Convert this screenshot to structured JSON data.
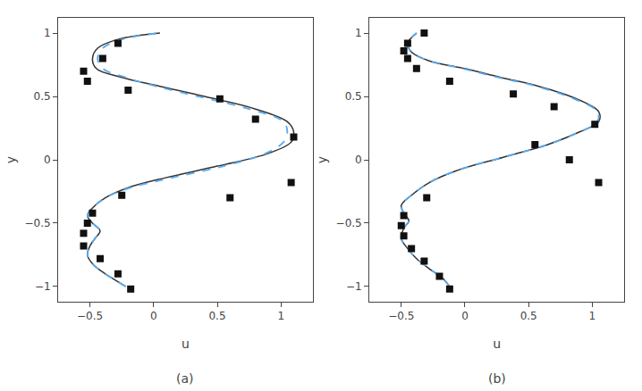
{
  "chart_data": [
    {
      "type": "line",
      "title": "(a)",
      "xlabel": "u",
      "ylabel": "y",
      "xlim": [
        -0.75,
        1.25
      ],
      "ylim": [
        -1.12,
        1.12
      ],
      "xticks": [
        -0.5,
        0,
        0.5,
        1
      ],
      "yticks": [
        -1,
        -0.5,
        0,
        0.5,
        1
      ],
      "grid": false,
      "series": [
        {
          "type": "line",
          "color": "#333333",
          "line_style": "solid",
          "x": [
            -0.22,
            -0.3,
            -0.38,
            -0.48,
            -0.52,
            -0.5,
            -0.46,
            -0.42,
            -0.48,
            -0.52,
            -0.48,
            -0.38,
            -0.2,
            0.1,
            0.5,
            0.9,
            1.08,
            1.1,
            1.05,
            0.8,
            0.4,
            0.05,
            -0.25,
            -0.45,
            -0.48,
            -0.44,
            -0.28,
            0.05
          ],
          "values": [
            -1.0,
            -0.95,
            -0.9,
            -0.82,
            -0.75,
            -0.68,
            -0.62,
            -0.56,
            -0.5,
            -0.44,
            -0.38,
            -0.3,
            -0.22,
            -0.14,
            -0.05,
            0.05,
            0.14,
            0.22,
            0.3,
            0.4,
            0.5,
            0.58,
            0.65,
            0.72,
            0.8,
            0.88,
            0.95,
            1.0
          ]
        },
        {
          "type": "line",
          "color": "#5aabf0",
          "line_style": "dashed",
          "x": [
            -0.22,
            -0.3,
            -0.38,
            -0.48,
            -0.52,
            -0.5,
            -0.46,
            -0.42,
            -0.48,
            -0.52,
            -0.48,
            -0.38,
            -0.18,
            0.15,
            0.55,
            0.88,
            1.02,
            1.05,
            1.02,
            0.75,
            0.35,
            0.02,
            -0.22,
            -0.4,
            -0.44,
            -0.4,
            -0.25,
            0.05
          ],
          "values": [
            -1.0,
            -0.95,
            -0.9,
            -0.82,
            -0.75,
            -0.68,
            -0.62,
            -0.56,
            -0.5,
            -0.44,
            -0.38,
            -0.3,
            -0.22,
            -0.14,
            -0.05,
            0.05,
            0.14,
            0.22,
            0.3,
            0.4,
            0.5,
            0.58,
            0.65,
            0.72,
            0.8,
            0.88,
            0.95,
            1.0
          ]
        },
        {
          "type": "scatter",
          "color": "#111111",
          "marker": "square",
          "x": [
            -0.18,
            -0.28,
            -0.42,
            -0.55,
            -0.55,
            -0.52,
            -0.48,
            -0.25,
            0.6,
            1.08,
            1.1,
            0.8,
            0.52,
            -0.2,
            -0.52,
            -0.55,
            -0.4,
            -0.28
          ],
          "values": [
            -1.02,
            -0.9,
            -0.78,
            -0.68,
            -0.58,
            -0.5,
            -0.42,
            -0.28,
            -0.3,
            -0.18,
            0.18,
            0.32,
            0.48,
            0.55,
            0.62,
            0.7,
            0.8,
            0.92
          ]
        }
      ]
    },
    {
      "type": "line",
      "title": "(b)",
      "xlabel": "u",
      "ylabel": "y",
      "xlim": [
        -0.75,
        1.25
      ],
      "ylim": [
        -1.12,
        1.12
      ],
      "xticks": [
        -0.5,
        0,
        0.5,
        1
      ],
      "yticks": [
        -1,
        -0.5,
        0,
        0.5,
        1
      ],
      "grid": false,
      "series": [
        {
          "type": "line",
          "color": "#333333",
          "line_style": "solid",
          "x": [
            -0.12,
            -0.18,
            -0.28,
            -0.38,
            -0.45,
            -0.5,
            -0.48,
            -0.44,
            -0.48,
            -0.5,
            -0.42,
            -0.28,
            -0.05,
            0.3,
            0.65,
            0.9,
            1.05,
            1.05,
            0.88,
            0.58,
            0.28,
            0.0,
            -0.28,
            -0.42,
            -0.45,
            -0.38
          ],
          "values": [
            -1.0,
            -0.93,
            -0.86,
            -0.78,
            -0.7,
            -0.62,
            -0.54,
            -0.48,
            -0.42,
            -0.36,
            -0.28,
            -0.18,
            -0.08,
            0.02,
            0.12,
            0.22,
            0.3,
            0.38,
            0.48,
            0.58,
            0.65,
            0.72,
            0.78,
            0.85,
            0.92,
            1.0
          ]
        },
        {
          "type": "line",
          "color": "#5aabf0",
          "line_style": "dashed",
          "x": [
            -0.12,
            -0.18,
            -0.28,
            -0.38,
            -0.45,
            -0.5,
            -0.48,
            -0.44,
            -0.48,
            -0.5,
            -0.42,
            -0.28,
            -0.05,
            0.3,
            0.65,
            0.9,
            1.04,
            1.04,
            0.86,
            0.56,
            0.26,
            -0.02,
            -0.28,
            -0.42,
            -0.45,
            -0.38
          ],
          "values": [
            -1.0,
            -0.93,
            -0.86,
            -0.78,
            -0.7,
            -0.62,
            -0.54,
            -0.48,
            -0.42,
            -0.36,
            -0.28,
            -0.18,
            -0.08,
            0.02,
            0.12,
            0.22,
            0.3,
            0.38,
            0.48,
            0.58,
            0.65,
            0.72,
            0.78,
            0.85,
            0.92,
            1.0
          ]
        },
        {
          "type": "scatter",
          "color": "#111111",
          "marker": "square",
          "x": [
            -0.12,
            -0.2,
            -0.32,
            -0.42,
            -0.48,
            -0.5,
            -0.48,
            -0.3,
            0.55,
            0.82,
            1.05,
            1.02,
            0.7,
            0.38,
            -0.12,
            -0.38,
            -0.45,
            -0.48,
            -0.45,
            -0.32
          ],
          "values": [
            -1.02,
            -0.92,
            -0.8,
            -0.7,
            -0.6,
            -0.52,
            -0.44,
            -0.3,
            0.12,
            0.0,
            -0.18,
            0.28,
            0.42,
            0.52,
            0.62,
            0.72,
            0.8,
            0.86,
            0.92,
            1.0
          ]
        }
      ]
    }
  ]
}
